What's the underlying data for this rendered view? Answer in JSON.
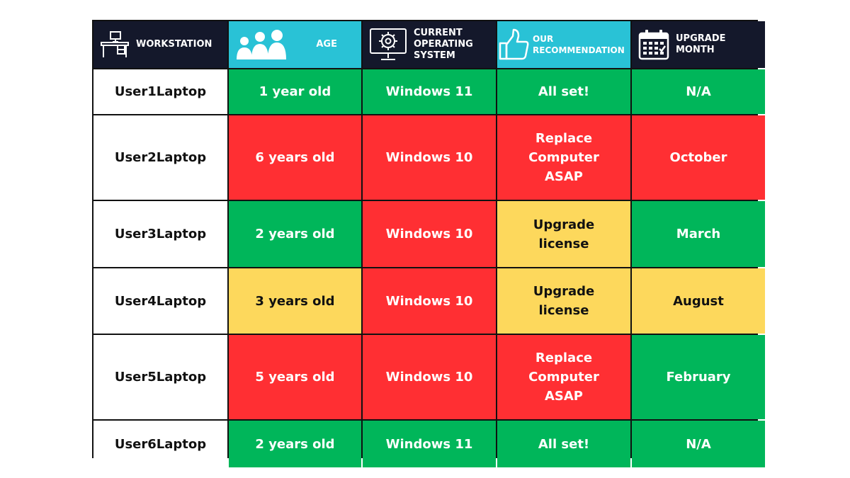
{
  "colors": {
    "header_dark": "#14182b",
    "header_cyan": "#29c2d6",
    "green": "#00b65a",
    "red": "#ff2f33",
    "yellow": "#fdd85c",
    "white": "#ffffff",
    "border": "#111111"
  },
  "headers": [
    {
      "label": "WORKSTATION",
      "icon": "desk-icon",
      "bg": "header_dark"
    },
    {
      "label": "AGE",
      "icon": "users-icon",
      "bg": "header_cyan"
    },
    {
      "label": "CURRENT OPERATING SYSTEM",
      "icon": "monitor-gear-icon",
      "bg": "header_dark"
    },
    {
      "label": "OUR RECOMMENDATION",
      "icon": "thumbs-up-icon",
      "bg": "header_cyan"
    },
    {
      "label": "UPGRADE MONTH",
      "icon": "calendar-icon",
      "bg": "header_dark"
    }
  ],
  "rows": [
    {
      "workstation": "User1Laptop",
      "age": "1 year old",
      "age_status": "green",
      "os": "Windows 11",
      "os_status": "green",
      "recommendation": "All set!",
      "rec_status": "green",
      "month": "N/A",
      "month_status": "green"
    },
    {
      "workstation": "User2Laptop",
      "age": "6 years old",
      "age_status": "red",
      "os": "Windows 10",
      "os_status": "red",
      "recommendation": "Replace Computer ASAP",
      "rec_status": "red",
      "month": "October",
      "month_status": "red"
    },
    {
      "workstation": "User3Laptop",
      "age": "2 years old",
      "age_status": "green",
      "os": "Windows 10",
      "os_status": "red",
      "recommendation": "Upgrade license",
      "rec_status": "yellow",
      "month": "March",
      "month_status": "green"
    },
    {
      "workstation": "User4Laptop",
      "age": "3 years old",
      "age_status": "yellow",
      "os": "Windows 10",
      "os_status": "red",
      "recommendation": "Upgrade license",
      "rec_status": "yellow",
      "month": "August",
      "month_status": "yellow"
    },
    {
      "workstation": "User5Laptop",
      "age": "5 years old",
      "age_status": "red",
      "os": "Windows 10",
      "os_status": "red",
      "recommendation": "Replace Computer ASAP",
      "rec_status": "red",
      "month": "February",
      "month_status": "green"
    },
    {
      "workstation": "User6Laptop",
      "age": "2 years old",
      "age_status": "green",
      "os": "Windows 11",
      "os_status": "green",
      "recommendation": "All set!",
      "rec_status": "green",
      "month": "N/A",
      "month_status": "green"
    }
  ]
}
